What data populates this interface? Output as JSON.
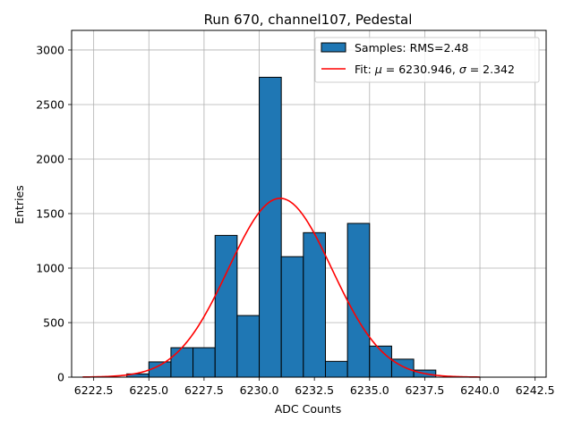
{
  "chart_data": {
    "type": "bar",
    "title": "Run 670, channel107, Pedestal",
    "xlabel": "ADC Counts",
    "ylabel": "Entries",
    "xlim": [
      6221.5,
      6243.0
    ],
    "ylim": [
      0,
      3180
    ],
    "xticks": [
      6222.5,
      6225.0,
      6227.5,
      6230.0,
      6232.5,
      6235.0,
      6237.5,
      6240.0,
      6242.5
    ],
    "xtick_labels": [
      "6222.5",
      "6225.0",
      "6227.5",
      "6230.0",
      "6232.5",
      "6235.0",
      "6237.5",
      "6240.0",
      "6242.5"
    ],
    "yticks": [
      0,
      500,
      1000,
      1500,
      2000,
      2500,
      3000
    ],
    "ytick_labels": [
      "0",
      "500",
      "1000",
      "1500",
      "2000",
      "2500",
      "3000"
    ],
    "grid": true,
    "legend_position": "top-right",
    "histogram": {
      "name": "Samples: RMS=2.48",
      "color": "#1f77b4",
      "edge_color": "#000000",
      "bin_edges": [
        6224.0,
        6225.0,
        6226.0,
        6227.0,
        6228.0,
        6229.0,
        6230.0,
        6231.0,
        6232.0,
        6233.0,
        6234.0,
        6235.0,
        6236.0,
        6237.0,
        6238.0
      ],
      "counts": [
        30,
        140,
        270,
        270,
        1300,
        565,
        2750,
        1105,
        1325,
        145,
        1410,
        285,
        165,
        65
      ]
    },
    "fit": {
      "name": "Fit: μ = 6230.946, σ = 2.342",
      "legend_prefix": "Fit: ",
      "legend_mu_symbol": "μ",
      "legend_mu_value": " = 6230.946, ",
      "legend_sigma_symbol": "σ",
      "legend_sigma_value": " = 2.342",
      "color": "#ff0000",
      "mu": 6230.946,
      "sigma": 2.342,
      "amplitude": 1640,
      "x_range": [
        6222.0,
        6240.0
      ]
    }
  }
}
